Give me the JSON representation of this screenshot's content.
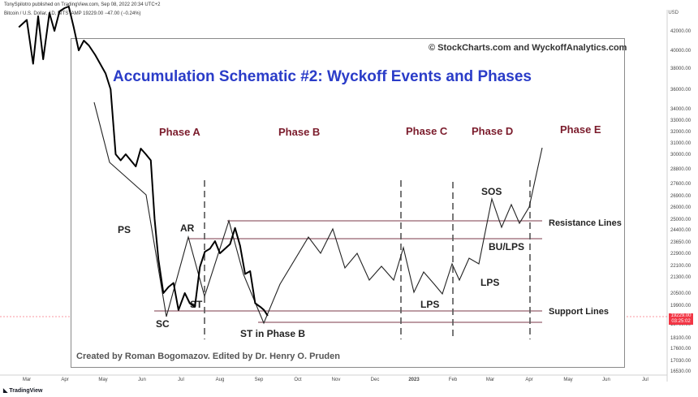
{
  "header": {
    "published": "TonySpilotro published on TradingView.com, Sep 08, 2022 20:34 UTC+2",
    "symbol_line": "Bitcoin / U.S. Dollar, 1D, BITSTAMP 19229.00 −47.00 (−0.24%)",
    "currency": "USD"
  },
  "footer": {
    "brand": "TradingView"
  },
  "price_label": {
    "price": "19229.00",
    "countdown": "03:25:02",
    "color": "#f23645",
    "value": 19229
  },
  "chart_data": {
    "type": "line",
    "y_axis_labels": [
      "42000.00",
      "40000.00",
      "38000.00",
      "36000.00",
      "34000.00",
      "33000.00",
      "32000.00",
      "31000.00",
      "30000.00",
      "28800.00",
      "27600.00",
      "26900.00",
      "26000.00",
      "25000.00",
      "24400.00",
      "23650.00",
      "22900.00",
      "22100.00",
      "21300.00",
      "20500.00",
      "19900.00",
      "18700.00",
      "18100.00",
      "17600.00",
      "17030.00",
      "16530.00"
    ],
    "x_axis_labels": [
      "Mar",
      "Apr",
      "May",
      "Jun",
      "Jul",
      "Aug",
      "Sep",
      "Oct",
      "Nov",
      "Dec",
      "2023",
      "Feb",
      "Mar",
      "Apr",
      "May",
      "Jun",
      "Jul"
    ],
    "series": [
      {
        "color": "#000000",
        "x": [
          "Feb 25",
          "Mar 1",
          "Mar 6",
          "Mar 10",
          "Mar 14",
          "Mar 19",
          "Mar 23",
          "Mar 27",
          "Mar 31",
          "Apr 4",
          "Apr 8",
          "Apr 12",
          "Apr 16",
          "Apr 20",
          "Apr 25",
          "Apr 29",
          "May 3",
          "May 7",
          "May 11",
          "May 15",
          "May 19",
          "May 23",
          "May 27",
          "May 31",
          "Jun 4",
          "Jun 8",
          "Jun 11",
          "Jun 14",
          "Jun 18",
          "Jun 22",
          "Jun 26",
          "Jun 30",
          "Jul 4",
          "Jul 8",
          "Jul 12",
          "Jul 16",
          "Jul 20",
          "Jul 24",
          "Jul 28",
          "Aug 1",
          "Aug 5",
          "Aug 9",
          "Aug 13",
          "Aug 17",
          "Aug 21",
          "Aug 25",
          "Aug 29",
          "Sep 2",
          "Sep 5",
          "Sep 8"
        ],
        "y": [
          42500,
          43500,
          38500,
          44000,
          39000,
          45000,
          42000,
          45500,
          46500,
          47000,
          42500,
          40000,
          41000,
          40500,
          39500,
          38500,
          37500,
          36000,
          30000,
          29500,
          30000,
          29500,
          29000,
          30500,
          30000,
          29500,
          25000,
          22500,
          20500,
          20800,
          21000,
          19600,
          20500,
          20000,
          19800,
          22000,
          23000,
          23200,
          23700,
          22900,
          23200,
          23500,
          24500,
          23400,
          21500,
          21700,
          20000,
          19800,
          19600,
          19229
        ]
      }
    ],
    "schematic": {
      "title": "Accumulation Schematic #2: Wyckoff Events and Phases",
      "copyright": "© StockCharts.com and WyckoffAnalytics.com",
      "credit": "Created by Roman Bogomazov. Edited by Dr. Henry O. Pruden",
      "phases": [
        "Phase A",
        "Phase B",
        "Phase C",
        "Phase D",
        "Phase E"
      ],
      "events": [
        "PS",
        "SC",
        "AR",
        "ST",
        "ST in Phase B",
        "LPS",
        "SOS",
        "BU/LPS",
        "LPS"
      ],
      "line_labels": [
        "Resistance Lines",
        "Support Lines"
      ]
    }
  }
}
